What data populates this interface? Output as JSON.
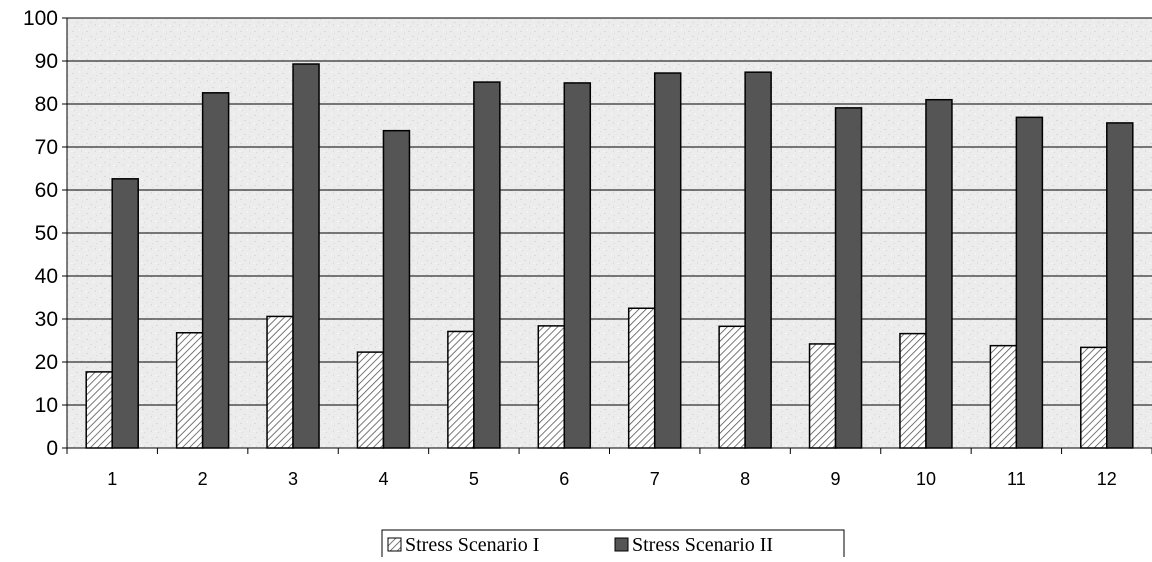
{
  "chart_data": {
    "type": "bar",
    "categories": [
      "1",
      "2",
      "3",
      "4",
      "5",
      "6",
      "7",
      "8",
      "9",
      "10",
      "11",
      "12"
    ],
    "series": [
      {
        "name": "Stress Scenario I",
        "values": [
          17.7,
          26.8,
          30.6,
          22.3,
          27.1,
          28.4,
          32.5,
          28.3,
          24.2,
          26.6,
          23.8,
          23.4
        ],
        "fill": "hatched"
      },
      {
        "name": "Stress Scenario II",
        "values": [
          62.6,
          82.6,
          89.3,
          73.8,
          85.1,
          84.9,
          87.2,
          87.4,
          79.1,
          81.0,
          76.9,
          75.6
        ],
        "fill": "#555555"
      }
    ],
    "ylim": [
      0,
      100
    ],
    "yticks": [
      "0",
      "10",
      "20",
      "30",
      "40",
      "50",
      "60",
      "70",
      "80",
      "90",
      "100"
    ],
    "grid": true,
    "legend_position": "bottom",
    "title": "",
    "xlabel": "",
    "ylabel": ""
  },
  "colors": {
    "dark_bar": "#555555",
    "hatch_line": "#555555",
    "plot_background": "#ebebeb",
    "axis": "#000000"
  }
}
